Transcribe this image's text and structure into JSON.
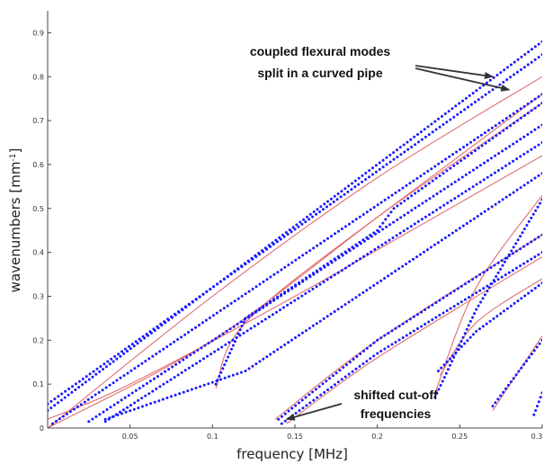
{
  "chart_data": {
    "type": "scatter",
    "title": "",
    "xlabel": "frequency [MHz]",
    "ylabel": "wavenumbers [mm",
    "ylabel_sup": "-1",
    "ylabel_tail": "]",
    "xlim": [
      0,
      0.3
    ],
    "ylim": [
      0,
      0.95
    ],
    "x_ticks": [
      0.05,
      0.1,
      0.15,
      0.2,
      0.25,
      0.3
    ],
    "x_tick_labels": [
      "0.05",
      "0.1",
      "0.15",
      "0.2",
      "0.25",
      "0.3"
    ],
    "y_ticks": [
      0,
      0.1,
      0.2,
      0.3,
      0.4,
      0.5,
      0.6,
      0.7,
      0.8,
      0.9
    ],
    "y_tick_labels": [
      "0",
      "0.1",
      "0.2",
      "0.3",
      "0.4",
      "0.5",
      "0.6",
      "0.7",
      "0.8",
      "0.9"
    ],
    "grid": false,
    "colors": {
      "dots": "#1a1aff",
      "curves": "#e06060",
      "axis": "#444444"
    },
    "dot_series": [
      {
        "x": [
          0,
          0.3
        ],
        "y": [
          0.04,
          0.88
        ]
      },
      {
        "x": [
          0,
          0.3
        ],
        "y": [
          0.055,
          0.85
        ]
      },
      {
        "x": [
          0.003,
          0.3
        ],
        "y": [
          0.01,
          0.76
        ]
      },
      {
        "x": [
          0.025,
          0.3
        ],
        "y": [
          0.015,
          0.69
        ]
      },
      {
        "x": [
          0.035,
          0.3
        ],
        "y": [
          0.015,
          0.65
        ]
      },
      {
        "x": [
          0.035,
          0.12,
          0.2,
          0.3
        ],
        "y": [
          0.02,
          0.13,
          0.33,
          0.58
        ]
      },
      {
        "x": [
          0.14,
          0.2,
          0.3
        ],
        "y": [
          0.02,
          0.2,
          0.44
        ]
      },
      {
        "x": [
          0.142,
          0.2,
          0.3
        ],
        "y": [
          0.01,
          0.17,
          0.4
        ]
      },
      {
        "x": [
          0.102,
          0.12,
          0.2,
          0.21,
          0.3
        ],
        "y": [
          0.1,
          0.25,
          0.45,
          0.5,
          0.74
        ]
      },
      {
        "x": [
          0.235,
          0.26,
          0.3
        ],
        "y": [
          0.07,
          0.27,
          0.52
        ]
      },
      {
        "x": [
          0.237,
          0.26,
          0.3
        ],
        "y": [
          0.13,
          0.22,
          0.33
        ]
      },
      {
        "x": [
          0.27,
          0.3
        ],
        "y": [
          0.05,
          0.2
        ]
      },
      {
        "x": [
          0.295,
          0.3
        ],
        "y": [
          0.03,
          0.08
        ]
      }
    ],
    "curve_series": [
      {
        "x": [
          0,
          0.1,
          0.2,
          0.3
        ],
        "y": [
          0,
          0.3,
          0.57,
          0.8
        ]
      },
      {
        "x": [
          0,
          0.1,
          0.2,
          0.3
        ],
        "y": [
          0,
          0.2,
          0.48,
          0.76
        ]
      },
      {
        "x": [
          0,
          0.05,
          0.15,
          0.3
        ],
        "y": [
          0.02,
          0.1,
          0.3,
          0.62
        ]
      },
      {
        "x": [
          0.102,
          0.12,
          0.2,
          0.3
        ],
        "y": [
          0.09,
          0.24,
          0.48,
          0.74
        ]
      },
      {
        "x": [
          0.138,
          0.2,
          0.3
        ],
        "y": [
          0.02,
          0.2,
          0.44
        ]
      },
      {
        "x": [
          0.145,
          0.2,
          0.3
        ],
        "y": [
          0.01,
          0.16,
          0.39
        ]
      },
      {
        "x": [
          0.235,
          0.26,
          0.3
        ],
        "y": [
          0.08,
          0.32,
          0.53
        ]
      },
      {
        "x": [
          0.238,
          0.26,
          0.3
        ],
        "y": [
          0.12,
          0.24,
          0.34
        ]
      },
      {
        "x": [
          0.27,
          0.3
        ],
        "y": [
          0.04,
          0.21
        ]
      }
    ],
    "annotations": [
      {
        "lines": [
          "coupled flexural modes",
          "split in a curved pipe"
        ],
        "arrows_to": [
          [
            0.27,
            0.8
          ],
          [
            0.28,
            0.77
          ]
        ]
      },
      {
        "lines": [
          "shifted cut-off",
          "frequencies"
        ],
        "arrows_to": [
          [
            0.145,
            0.02
          ]
        ]
      }
    ]
  }
}
